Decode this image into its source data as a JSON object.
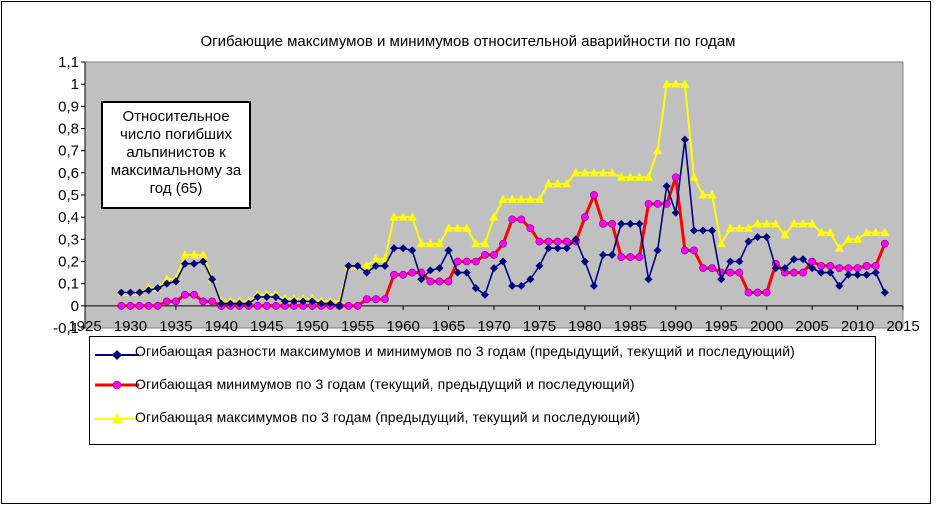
{
  "chart_data": {
    "type": "line",
    "title": "Огибающие максимумов и минимумов  относительной аварийности по годам",
    "annotation": "Относительное число погибших альпинистов к максимальному за год (65)",
    "xlim": [
      1925,
      2015
    ],
    "ylim": [
      -0.1,
      1.1
    ],
    "x_ticks": [
      "1925",
      "1930",
      "1935",
      "1940",
      "1945",
      "1950",
      "1955",
      "1960",
      "1965",
      "1970",
      "1975",
      "1980",
      "1985",
      "1990",
      "1995",
      "2000",
      "2005",
      "2010",
      "2015"
    ],
    "y_ticks": [
      "-0,1",
      "0",
      "0,1",
      "0,2",
      "0,3",
      "0,4",
      "0,5",
      "0,6",
      "0,7",
      "0,8",
      "0,9",
      "1",
      "1,1"
    ],
    "legend_position": "bottom",
    "grid": false,
    "plot_background": "#c0c0c0",
    "series": [
      {
        "name": "Огибающая разности максимумов и минимумов по 3 годам (предыдущий, текущий и последующий)",
        "color": "#000080",
        "marker": "diamond",
        "x": [
          1929,
          1930,
          1931,
          1932,
          1933,
          1934,
          1935,
          1936,
          1937,
          1938,
          1939,
          1940,
          1941,
          1942,
          1943,
          1944,
          1945,
          1946,
          1947,
          1948,
          1949,
          1950,
          1951,
          1952,
          1953,
          1954,
          1955,
          1956,
          1957,
          1958,
          1959,
          1960,
          1961,
          1962,
          1963,
          1964,
          1965,
          1966,
          1967,
          1968,
          1969,
          1970,
          1971,
          1972,
          1973,
          1974,
          1975,
          1976,
          1977,
          1978,
          1979,
          1980,
          1981,
          1982,
          1983,
          1984,
          1985,
          1986,
          1987,
          1988,
          1989,
          1990,
          1991,
          1992,
          1993,
          1994,
          1995,
          1996,
          1997,
          1998,
          1999,
          2000,
          2001,
          2002,
          2003,
          2004,
          2005,
          2006,
          2007,
          2008,
          2009,
          2010,
          2011,
          2012,
          2013
        ],
        "y": [
          0.06,
          0.06,
          0.06,
          0.07,
          0.08,
          0.1,
          0.11,
          0.19,
          0.19,
          0.2,
          0.12,
          0.01,
          0.01,
          0.01,
          0.01,
          0.04,
          0.04,
          0.04,
          0.02,
          0.02,
          0.02,
          0.02,
          0.01,
          0.01,
          0.0,
          0.18,
          0.18,
          0.15,
          0.18,
          0.18,
          0.26,
          0.26,
          0.25,
          0.12,
          0.16,
          0.17,
          0.25,
          0.15,
          0.15,
          0.08,
          0.05,
          0.17,
          0.2,
          0.09,
          0.09,
          0.12,
          0.18,
          0.26,
          0.26,
          0.26,
          0.3,
          0.2,
          0.09,
          0.23,
          0.23,
          0.37,
          0.37,
          0.37,
          0.12,
          0.25,
          0.54,
          0.42,
          0.75,
          0.34,
          0.34,
          0.34,
          0.12,
          0.2,
          0.2,
          0.29,
          0.31,
          0.31,
          0.17,
          0.17,
          0.21,
          0.21,
          0.17,
          0.15,
          0.15,
          0.09,
          0.14,
          0.14,
          0.14,
          0.15,
          0.06
        ]
      },
      {
        "name": "Огибающая минимумов по 3 годам (текущий, предыдущий и последующий)",
        "color": "#ff0000",
        "marker": "circle",
        "marker_color": "#ff00ff",
        "x": [
          1929,
          1930,
          1931,
          1932,
          1933,
          1934,
          1935,
          1936,
          1937,
          1938,
          1939,
          1940,
          1941,
          1942,
          1943,
          1944,
          1945,
          1946,
          1947,
          1948,
          1949,
          1950,
          1951,
          1952,
          1953,
          1954,
          1955,
          1956,
          1957,
          1958,
          1959,
          1960,
          1961,
          1962,
          1963,
          1964,
          1965,
          1966,
          1967,
          1968,
          1969,
          1970,
          1971,
          1972,
          1973,
          1974,
          1975,
          1976,
          1977,
          1978,
          1979,
          1980,
          1981,
          1982,
          1983,
          1984,
          1985,
          1986,
          1987,
          1988,
          1989,
          1990,
          1991,
          1992,
          1993,
          1994,
          1995,
          1996,
          1997,
          1998,
          1999,
          2000,
          2001,
          2002,
          2003,
          2004,
          2005,
          2006,
          2007,
          2008,
          2009,
          2010,
          2011,
          2012,
          2013
        ],
        "y": [
          0.0,
          0.0,
          0.0,
          0.0,
          0.0,
          0.02,
          0.02,
          0.05,
          0.05,
          0.02,
          0.02,
          0.0,
          0.0,
          0.0,
          0.0,
          0.0,
          0.0,
          0.0,
          0.0,
          0.0,
          0.0,
          0.0,
          0.0,
          0.0,
          0.0,
          0.0,
          0.0,
          0.03,
          0.03,
          0.03,
          0.14,
          0.14,
          0.15,
          0.15,
          0.11,
          0.11,
          0.11,
          0.2,
          0.2,
          0.2,
          0.23,
          0.23,
          0.28,
          0.39,
          0.39,
          0.35,
          0.29,
          0.29,
          0.29,
          0.29,
          0.29,
          0.4,
          0.5,
          0.37,
          0.37,
          0.22,
          0.22,
          0.22,
          0.46,
          0.46,
          0.46,
          0.58,
          0.25,
          0.25,
          0.17,
          0.17,
          0.15,
          0.15,
          0.15,
          0.06,
          0.06,
          0.06,
          0.19,
          0.15,
          0.15,
          0.15,
          0.2,
          0.18,
          0.18,
          0.17,
          0.17,
          0.17,
          0.18,
          0.18,
          0.28
        ]
      },
      {
        "name": "Огибающая максимумов по 3 годам (предыдущий, текущий и последующий)",
        "color": "#ffff00",
        "marker": "triangle",
        "x": [
          1929,
          1930,
          1931,
          1932,
          1933,
          1934,
          1935,
          1936,
          1937,
          1938,
          1939,
          1940,
          1941,
          1942,
          1943,
          1944,
          1945,
          1946,
          1947,
          1948,
          1949,
          1950,
          1951,
          1952,
          1953,
          1954,
          1955,
          1956,
          1957,
          1958,
          1959,
          1960,
          1961,
          1962,
          1963,
          1964,
          1965,
          1966,
          1967,
          1968,
          1969,
          1970,
          1971,
          1972,
          1973,
          1974,
          1975,
          1976,
          1977,
          1978,
          1979,
          1980,
          1981,
          1982,
          1983,
          1984,
          1985,
          1986,
          1987,
          1988,
          1989,
          1990,
          1991,
          1992,
          1993,
          1994,
          1995,
          1996,
          1997,
          1998,
          1999,
          2000,
          2001,
          2002,
          2003,
          2004,
          2005,
          2006,
          2007,
          2008,
          2009,
          2010,
          2011,
          2012,
          2013
        ],
        "y": [
          0.06,
          0.06,
          0.06,
          0.08,
          0.08,
          0.12,
          0.12,
          0.23,
          0.23,
          0.23,
          0.12,
          0.02,
          0.02,
          0.02,
          0.02,
          0.05,
          0.05,
          0.05,
          0.03,
          0.03,
          0.03,
          0.03,
          0.02,
          0.02,
          0.02,
          0.18,
          0.18,
          0.18,
          0.21,
          0.21,
          0.4,
          0.4,
          0.4,
          0.28,
          0.28,
          0.28,
          0.35,
          0.35,
          0.35,
          0.28,
          0.28,
          0.4,
          0.48,
          0.48,
          0.48,
          0.48,
          0.48,
          0.55,
          0.55,
          0.55,
          0.6,
          0.6,
          0.6,
          0.6,
          0.6,
          0.58,
          0.58,
          0.58,
          0.58,
          0.7,
          1.0,
          1.0,
          1.0,
          0.58,
          0.5,
          0.5,
          0.28,
          0.35,
          0.35,
          0.35,
          0.37,
          0.37,
          0.37,
          0.32,
          0.37,
          0.37,
          0.37,
          0.33,
          0.33,
          0.26,
          0.3,
          0.3,
          0.33,
          0.33,
          0.33
        ]
      }
    ]
  }
}
